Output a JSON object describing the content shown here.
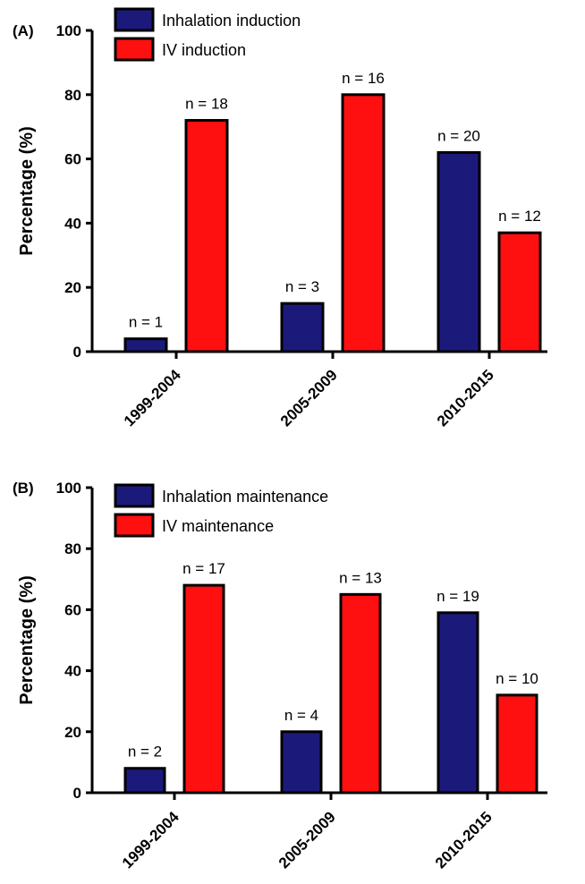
{
  "chart_data": [
    {
      "type": "bar",
      "panel_label": "(A)",
      "ylabel": "Percentage (%)",
      "ylim": [
        0,
        100
      ],
      "yticks": [
        0,
        20,
        40,
        60,
        80,
        100
      ],
      "categories": [
        "1999-2004",
        "2005-2009",
        "2010-2015"
      ],
      "series": [
        {
          "name": "Inhalation induction",
          "color": "#1b1a7a",
          "values": [
            4,
            15,
            62
          ],
          "labels": [
            "n = 1",
            "n = 3",
            "n = 20"
          ]
        },
        {
          "name": "IV induction",
          "color": "#ff1010",
          "values": [
            72,
            80,
            37
          ],
          "labels": [
            "n = 18",
            "n = 16",
            "n = 12"
          ]
        }
      ]
    },
    {
      "type": "bar",
      "panel_label": "(B)",
      "ylabel": "Percentage (%)",
      "ylim": [
        0,
        100
      ],
      "yticks": [
        0,
        20,
        40,
        60,
        80,
        100
      ],
      "categories": [
        "1999-2004",
        "2005-2009",
        "2010-2015"
      ],
      "series": [
        {
          "name": "Inhalation maintenance",
          "color": "#1b1a7a",
          "values": [
            8,
            20,
            59
          ],
          "labels": [
            "n = 2",
            "n = 4",
            "n = 19"
          ]
        },
        {
          "name": "IV maintenance",
          "color": "#ff1010",
          "values": [
            68,
            65,
            32
          ],
          "labels": [
            "n = 17",
            "n = 13",
            "n = 10"
          ]
        }
      ]
    }
  ]
}
